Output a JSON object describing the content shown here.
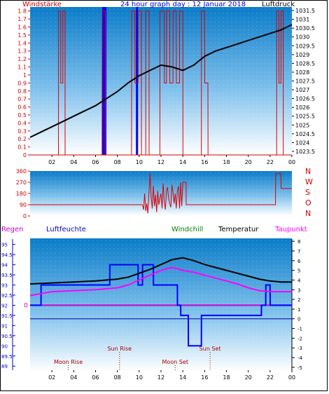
{
  "chart_data": [
    {
      "type": "line",
      "title": "24 hour graph day : 12 Januar 2018",
      "left_label": "Windstärke",
      "right_label": "Luftdruck",
      "x_ticks": [
        "02",
        "04",
        "06",
        "08",
        "10",
        "12",
        "14",
        "16",
        "18",
        "20",
        "22",
        "00"
      ],
      "y_left_ticks": [
        "1.8",
        "1.7",
        "1.6",
        "1.5",
        "1.4",
        "1.3",
        "1.2",
        "1.1",
        "1",
        "0.9",
        "0.8",
        "0.7",
        "0.6",
        "0.5",
        "0.4",
        "0.3",
        "0.2",
        "0.1",
        "0"
      ],
      "y_left_range": [
        0,
        1.85
      ],
      "y_right_ticks": [
        "1031.5",
        "1031",
        "1030.5",
        "1030",
        "1029.5",
        "1029",
        "1028.5",
        "1028",
        "1027.5",
        "1027",
        "1026.5",
        "1026",
        "1025.5",
        "1025",
        "1024.5",
        "1024",
        "1023.5"
      ],
      "y_right_range": [
        1023.3,
        1031.7
      ],
      "x_range_hours": [
        0,
        24
      ],
      "pressure": {
        "x": [
          0,
          1,
          2,
          3,
          4,
          5,
          6,
          7,
          8,
          9,
          10,
          11,
          12,
          13,
          14,
          15,
          16,
          17,
          18,
          19,
          20,
          21,
          22,
          23,
          24
        ],
        "values": [
          1024.3,
          1024.6,
          1024.9,
          1025.2,
          1025.5,
          1025.8,
          1026.1,
          1026.5,
          1026.9,
          1027.4,
          1027.8,
          1028.1,
          1028.4,
          1028.3,
          1028.1,
          1028.4,
          1028.9,
          1029.2,
          1029.4,
          1029.6,
          1029.8,
          1030.0,
          1030.2,
          1030.4,
          1030.7
        ]
      },
      "wind": {
        "x": [
          0,
          2.6,
          2.61,
          2.8,
          2.81,
          3.0,
          3.01,
          3.2,
          3.21,
          6.6,
          6.61,
          6.9,
          6.91,
          9.3,
          9.31,
          9.6,
          9.61,
          9.9,
          9.91,
          10.2,
          10.21,
          10.6,
          10.61,
          10.9,
          10.91,
          11.9,
          11.91,
          12.3,
          12.31,
          12.5,
          12.51,
          12.8,
          12.81,
          13.1,
          13.11,
          13.4,
          13.41,
          13.7,
          13.71,
          14.0,
          14.01,
          15.7,
          15.71,
          16.0,
          16.01,
          16.3,
          16.31,
          22.6,
          22.61,
          22.8,
          22.81,
          23.0,
          23.01,
          23.2,
          23.21,
          24
        ],
        "values": [
          0,
          0,
          1.8,
          1.8,
          0.9,
          0.9,
          1.8,
          1.8,
          0,
          0,
          1.8,
          1.8,
          0,
          0,
          1.8,
          1.8,
          0.9,
          0.9,
          1.8,
          1.8,
          0,
          0,
          1.8,
          1.8,
          0,
          0,
          1.8,
          1.8,
          0.9,
          0.9,
          1.8,
          1.8,
          0.9,
          0.9,
          1.8,
          1.8,
          0.9,
          0.9,
          1.8,
          1.8,
          0,
          0,
          1.8,
          1.8,
          0.9,
          0.9,
          0,
          0,
          1.8,
          1.8,
          0.9,
          0.9,
          1.8,
          1.8,
          0,
          0
        ]
      },
      "gust_bars_hours": [
        6.7,
        6.9,
        9.8
      ]
    },
    {
      "type": "line",
      "y_right_labels": [
        "N",
        "W",
        "S",
        "O",
        "N"
      ],
      "y_left_ticks": [
        "360",
        "270",
        "180",
        "90",
        "0"
      ],
      "y_range": [
        0,
        360
      ],
      "x_range_hours": [
        0,
        24
      ],
      "direction": {
        "x": [
          0,
          10.3,
          10.4,
          10.5,
          10.6,
          10.7,
          10.8,
          10.9,
          11.0,
          11.1,
          11.2,
          11.3,
          11.4,
          11.5,
          11.6,
          11.7,
          11.8,
          11.9,
          12.0,
          12.1,
          12.2,
          12.3,
          12.4,
          12.5,
          12.6,
          12.7,
          12.8,
          12.9,
          13.0,
          13.1,
          13.2,
          13.3,
          13.4,
          13.5,
          13.6,
          13.7,
          13.8,
          13.9,
          14.0,
          14.3,
          14.31,
          22.5,
          22.51,
          23.0,
          23.01,
          24
        ],
        "values": [
          90,
          90,
          50,
          180,
          40,
          100,
          20,
          200,
          340,
          150,
          60,
          240,
          80,
          170,
          30,
          200,
          90,
          140,
          180,
          60,
          260,
          120,
          50,
          200,
          230,
          140,
          100,
          70,
          250,
          190,
          100,
          180,
          60,
          200,
          240,
          60,
          270,
          80,
          270,
          270,
          90,
          90,
          340,
          340,
          220,
          220
        ]
      }
    },
    {
      "type": "line",
      "legend": [
        "Regen",
        "Luftfeuchte",
        "Windchill",
        "Temperatur",
        "Taupunkt"
      ],
      "x_ticks": [
        "02",
        "04",
        "06",
        "08",
        "10",
        "12",
        "14",
        "16",
        "18",
        "20",
        "22",
        "00"
      ],
      "y_left_ticks": [
        "95",
        "94.5",
        "94",
        "93.5",
        "93",
        "92.5",
        "92",
        "91.5",
        "91",
        "90.5",
        "90",
        "89.5",
        "89"
      ],
      "y_left_range": [
        88.8,
        95.3
      ],
      "rain_zero_label": "0",
      "y_right_ticks": [
        "8",
        "7",
        "6",
        "5",
        "4",
        "3",
        "2",
        "1",
        "0",
        "-1",
        "-2",
        "-3",
        "-4",
        "-5"
      ],
      "y_right_range": [
        -5.3,
        8.3
      ],
      "x_range_hours": [
        0,
        24
      ],
      "temperature": {
        "x": [
          0,
          2,
          4,
          6,
          8,
          9,
          10,
          11,
          12,
          13,
          14,
          15,
          16,
          17,
          18,
          19,
          20,
          21,
          22,
          23,
          24
        ],
        "values": [
          3.6,
          3.7,
          3.8,
          3.9,
          4.1,
          4.3,
          4.7,
          5.1,
          5.6,
          6.1,
          6.3,
          6.0,
          5.6,
          5.3,
          5.0,
          4.7,
          4.4,
          4.1,
          3.9,
          3.8,
          3.8
        ]
      },
      "windchill": {
        "x": [
          0,
          2,
          4,
          6,
          8,
          9,
          10,
          11,
          12,
          13,
          14,
          15,
          16,
          17,
          18,
          19,
          20,
          21,
          22,
          23,
          24
        ],
        "values": [
          3.6,
          3.7,
          3.8,
          3.9,
          4.1,
          4.3,
          4.7,
          5.1,
          5.6,
          6.1,
          6.3,
          6.0,
          5.6,
          5.3,
          5.0,
          4.7,
          4.4,
          4.1,
          3.9,
          3.8,
          3.8
        ]
      },
      "dewpoint": {
        "x": [
          0,
          1,
          2,
          4,
          6,
          7,
          8,
          9,
          10,
          11,
          12,
          13,
          14,
          15,
          16,
          17,
          18,
          19,
          20,
          21,
          22,
          23,
          24
        ],
        "values": [
          2.4,
          2.6,
          2.8,
          2.9,
          3.0,
          3.1,
          3.2,
          3.5,
          4.0,
          4.5,
          5.0,
          5.3,
          5.0,
          4.8,
          4.5,
          4.2,
          3.9,
          3.6,
          3.2,
          2.9,
          2.8,
          2.8,
          2.8
        ]
      },
      "humidity": {
        "x": [
          0,
          1,
          1.01,
          7.3,
          7.31,
          9.9,
          9.91,
          10.3,
          10.31,
          11.3,
          11.31,
          13.5,
          13.51,
          13.8,
          13.81,
          14.5,
          14.51,
          15.7,
          15.71,
          21.2,
          21.21,
          21.6,
          21.61,
          22.0,
          22.01,
          24
        ],
        "values": [
          92.0,
          92.0,
          93.0,
          93.0,
          94.0,
          94.0,
          93.0,
          93.0,
          94.0,
          94.0,
          93.0,
          93.0,
          92.0,
          92.0,
          91.5,
          91.5,
          90.0,
          90.0,
          91.5,
          91.5,
          92.0,
          92.0,
          93.0,
          93.0,
          92.0,
          92.0
        ]
      },
      "rain": {
        "x": [
          0,
          24
        ],
        "values": [
          0,
          0
        ]
      },
      "annotations": [
        {
          "label": "Sun Rise",
          "hour": 8.2,
          "kind": "sun"
        },
        {
          "label": "Sun Set",
          "hour": 16.5,
          "kind": "sun"
        },
        {
          "label": "Moon Rise",
          "hour": 3.5,
          "kind": "moon"
        },
        {
          "label": "Moon Set",
          "hour": 13.3,
          "kind": "moon"
        }
      ],
      "colors": {
        "temperature": "#000000",
        "windchill": "#007f00",
        "dewpoint": "#ff00ff",
        "humidity": "#0000ff",
        "rain": "#0000cc"
      }
    }
  ]
}
